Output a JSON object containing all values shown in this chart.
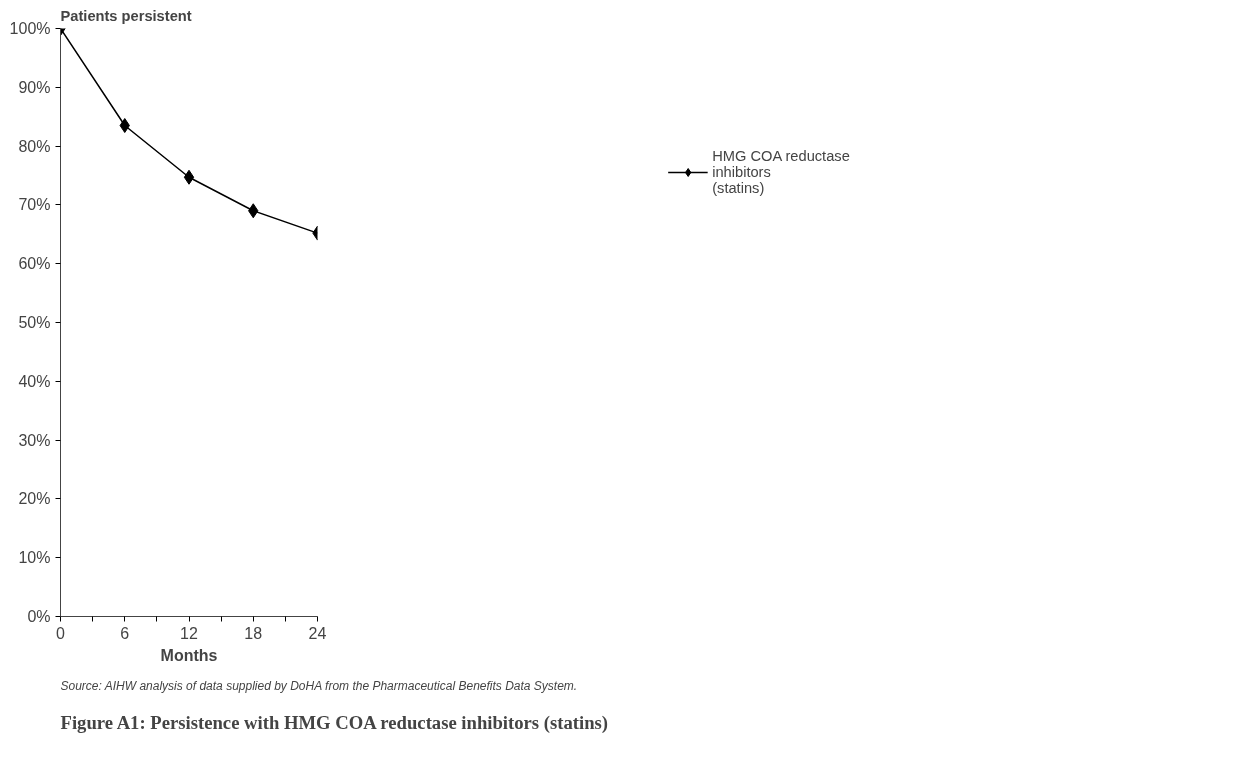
{
  "chart_data": {
    "type": "line",
    "title": "Figure A1: Persistence with HMG COA reductase inhibitors (statins)",
    "ylabel": "Patients persistent",
    "xlabel": "Months",
    "x": [
      0,
      6,
      12,
      18,
      24
    ],
    "series": [
      {
        "name": "HMG COA reductase inhibitors (statins)",
        "color": "#000000",
        "values": [
          100,
          83.5,
          74.7,
          69,
          65.2
        ]
      }
    ],
    "xlim": [
      0,
      24
    ],
    "xticks": [
      0,
      {
        "value": 3,
        "label": null
      },
      6,
      {
        "value": 9,
        "label": null
      },
      12,
      {
        "value": 15,
        "label": null
      },
      18,
      {
        "value": 21,
        "label": null
      },
      24
    ],
    "ylim": [
      0,
      100
    ],
    "yticks": [
      {
        "value": 0,
        "label": "0%"
      },
      {
        "value": 10,
        "label": "10%"
      },
      {
        "value": 20,
        "label": "20%"
      },
      {
        "value": 30,
        "label": "30%"
      },
      {
        "value": 40,
        "label": "40%"
      },
      {
        "value": 50,
        "label": "50%"
      },
      {
        "value": 60,
        "label": "60%"
      },
      {
        "value": 70,
        "label": "70%"
      },
      {
        "value": 80,
        "label": "80%"
      },
      {
        "value": 90,
        "label": "90%"
      },
      {
        "value": 100,
        "label": "100%"
      }
    ],
    "annotations": [
      "Source: AIHW analysis of data supplied by DoHA from the Pharmaceutical Benefits Data System."
    ],
    "grid": false,
    "legend": "right",
    "marker": "diamond",
    "line_style": "solid"
  }
}
